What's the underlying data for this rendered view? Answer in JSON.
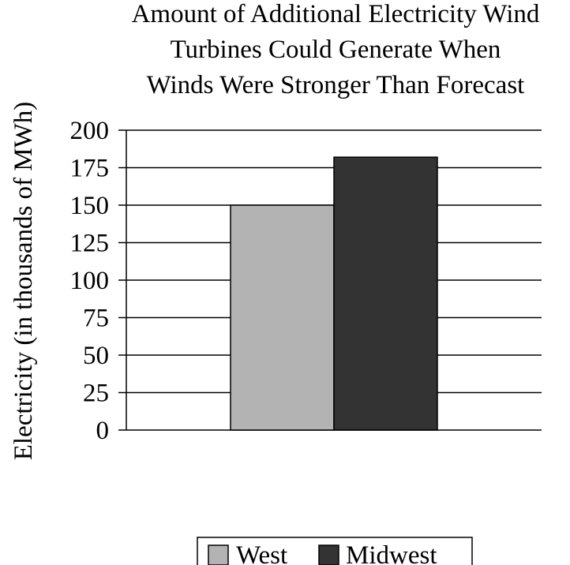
{
  "chart_data": {
    "type": "bar",
    "title_lines": [
      "Amount of Additional Electricity Wind",
      "Turbines Could Generate When",
      "Winds Were Stronger Than Forecast"
    ],
    "ylabel": "Electricity (in thousands of MWh)",
    "xlabel": "",
    "categories": [
      ""
    ],
    "series": [
      {
        "name": "West",
        "values": [
          150
        ],
        "color": "#b3b3b3"
      },
      {
        "name": "Midwest",
        "values": [
          182
        ],
        "color": "#333333"
      }
    ],
    "ylim": [
      0,
      200
    ],
    "yticks": [
      0,
      25,
      50,
      75,
      100,
      125,
      150,
      175,
      200
    ],
    "ytick_labels": [
      "0",
      "25",
      "50",
      "75",
      "100",
      "125",
      "150",
      "175",
      "200"
    ],
    "grid": true,
    "legend_position": "bottom"
  }
}
